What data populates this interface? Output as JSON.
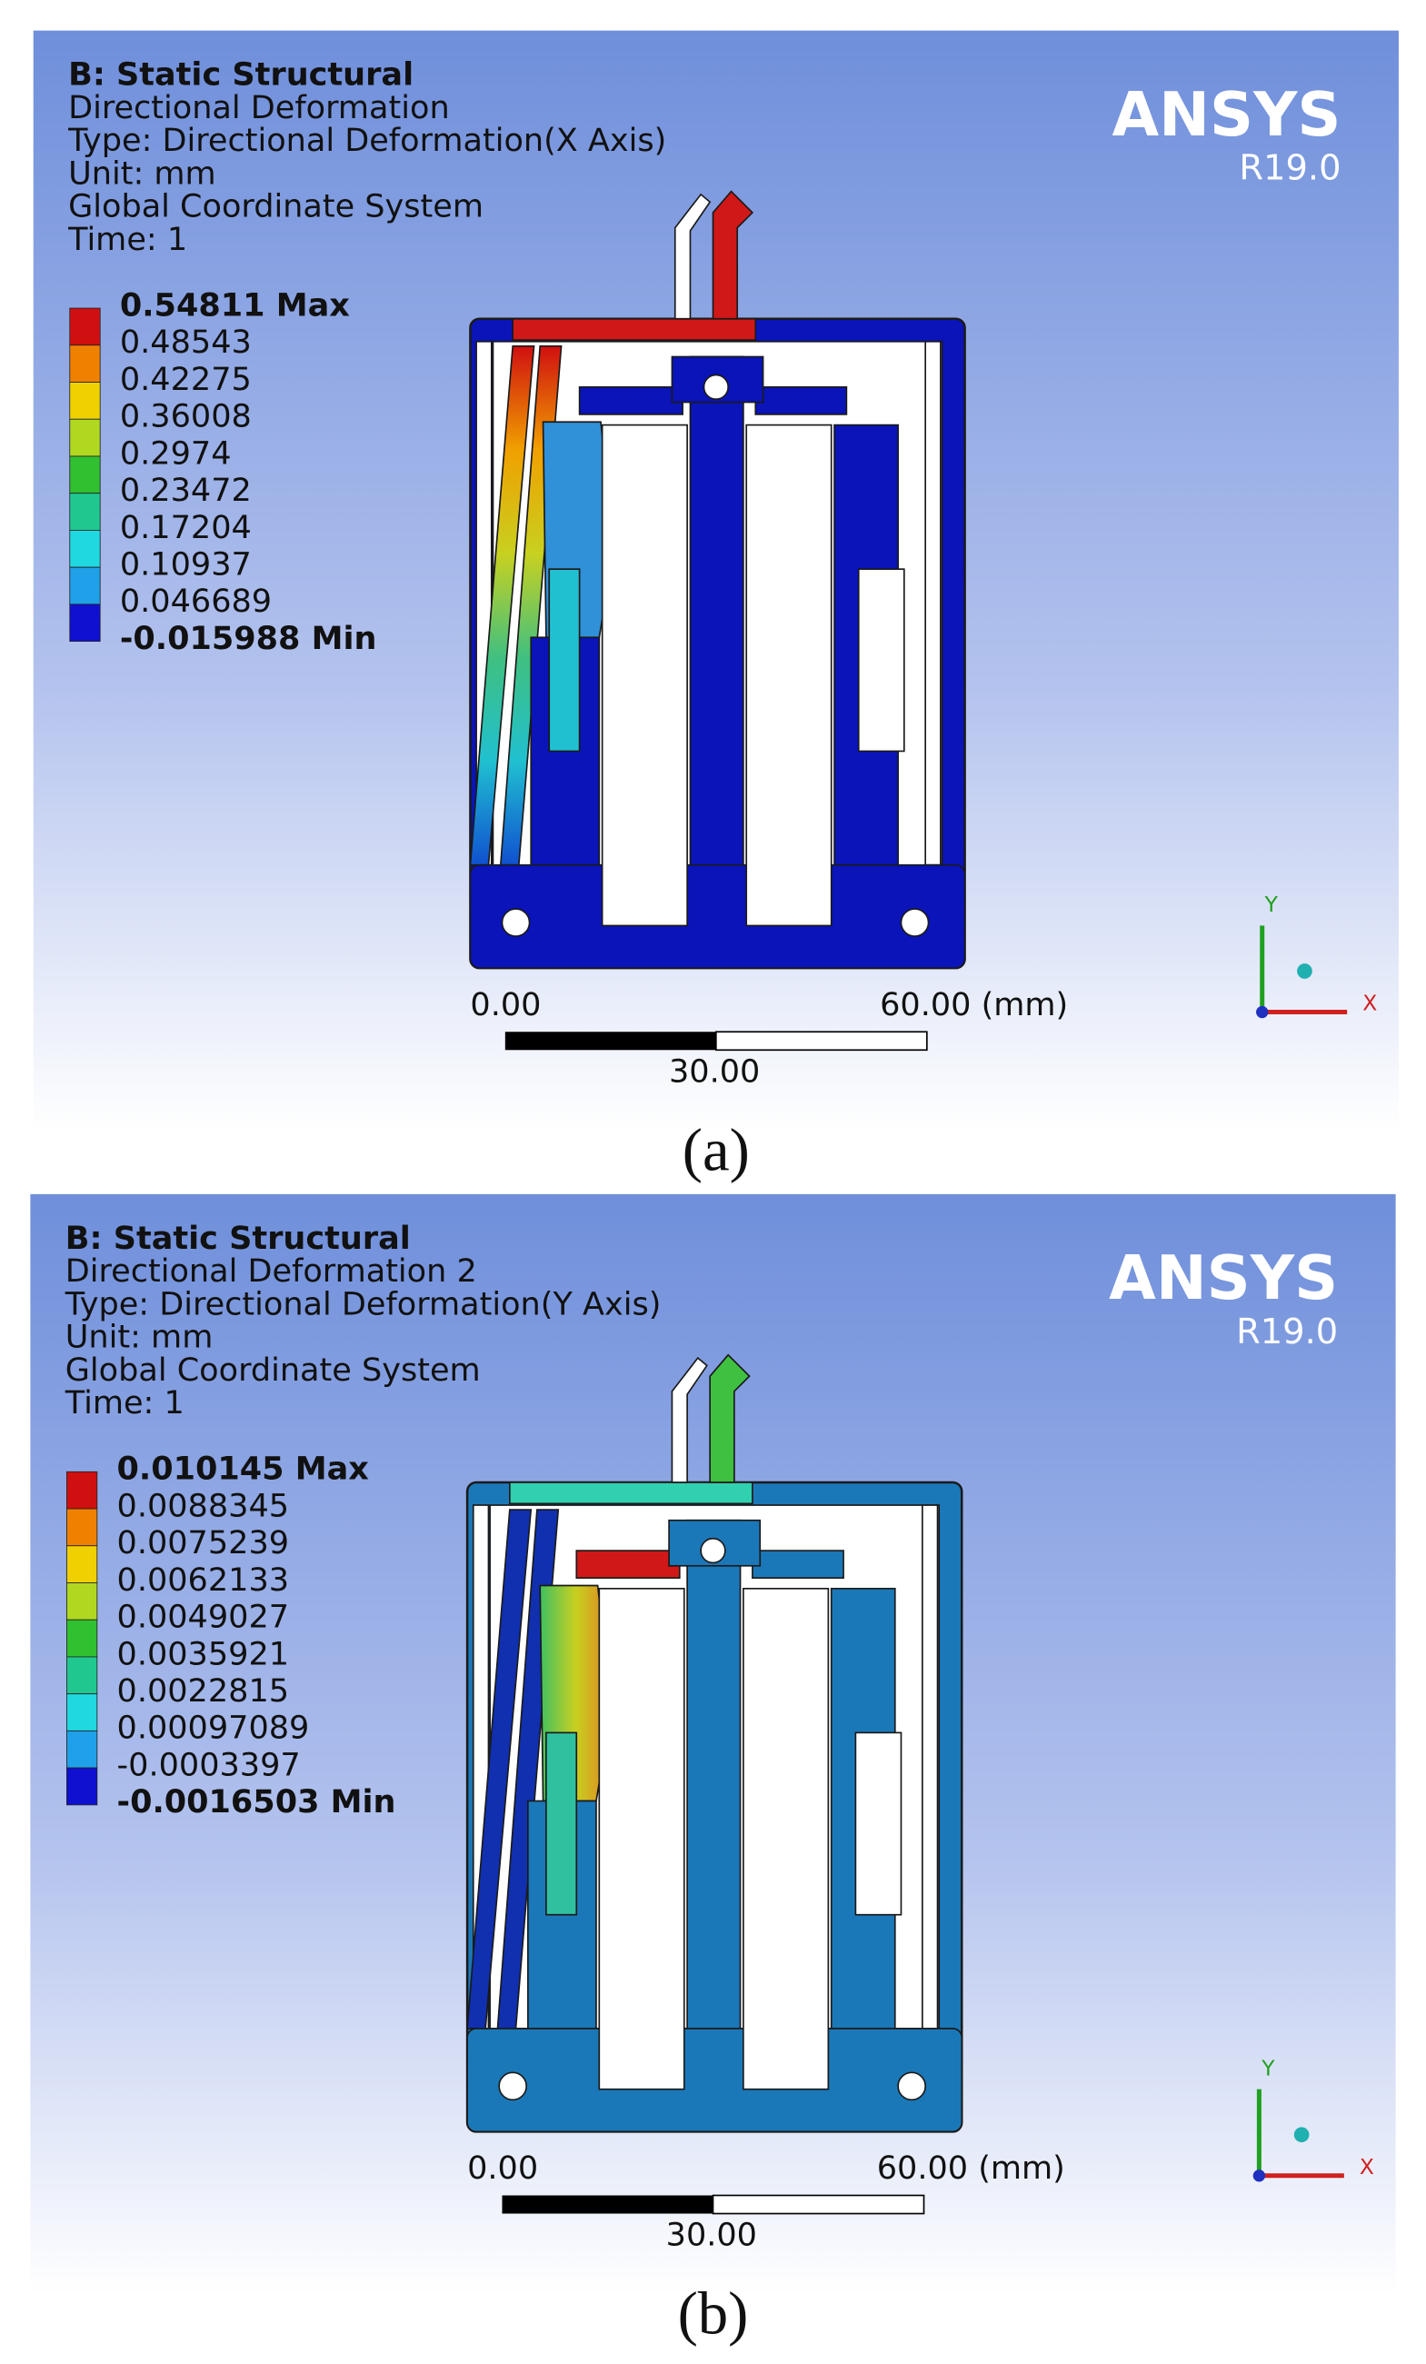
{
  "panels": [
    {
      "header": [
        "B: Static Structural",
        "Directional Deformation",
        "Type: Directional Deformation(X Axis)",
        "Unit: mm",
        "Global Coordinate System",
        "Time: 1"
      ],
      "legend": [
        "0.54811 Max",
        "0.48543",
        "0.42275",
        "0.36008",
        "0.2974",
        "0.23472",
        "0.17204",
        "0.10937",
        "0.046689",
        "-0.015988 Min"
      ],
      "logo": {
        "name": "ANSYS",
        "version": "R19.0"
      },
      "scale": {
        "start": "0.00",
        "end": "60.00 (mm)",
        "middle": "30.00"
      },
      "triad": {
        "y": "Y",
        "x": "X"
      },
      "caption": "(a)"
    },
    {
      "header": [
        "B: Static Structural",
        "Directional Deformation 2",
        "Type: Directional Deformation(Y Axis)",
        "Unit: mm",
        "Global Coordinate System",
        "Time: 1"
      ],
      "legend": [
        "0.010145 Max",
        "0.0088345",
        "0.0075239",
        "0.0062133",
        "0.0049027",
        "0.0035921",
        "0.0022815",
        "0.00097089",
        "-0.0003397",
        "-0.0016503 Min"
      ],
      "logo": {
        "name": "ANSYS",
        "version": "R19.0"
      },
      "scale": {
        "start": "0.00",
        "end": "60.00 (mm)",
        "middle": "30.00"
      },
      "triad": {
        "y": "Y",
        "x": "X"
      },
      "caption": "(b)"
    }
  ]
}
